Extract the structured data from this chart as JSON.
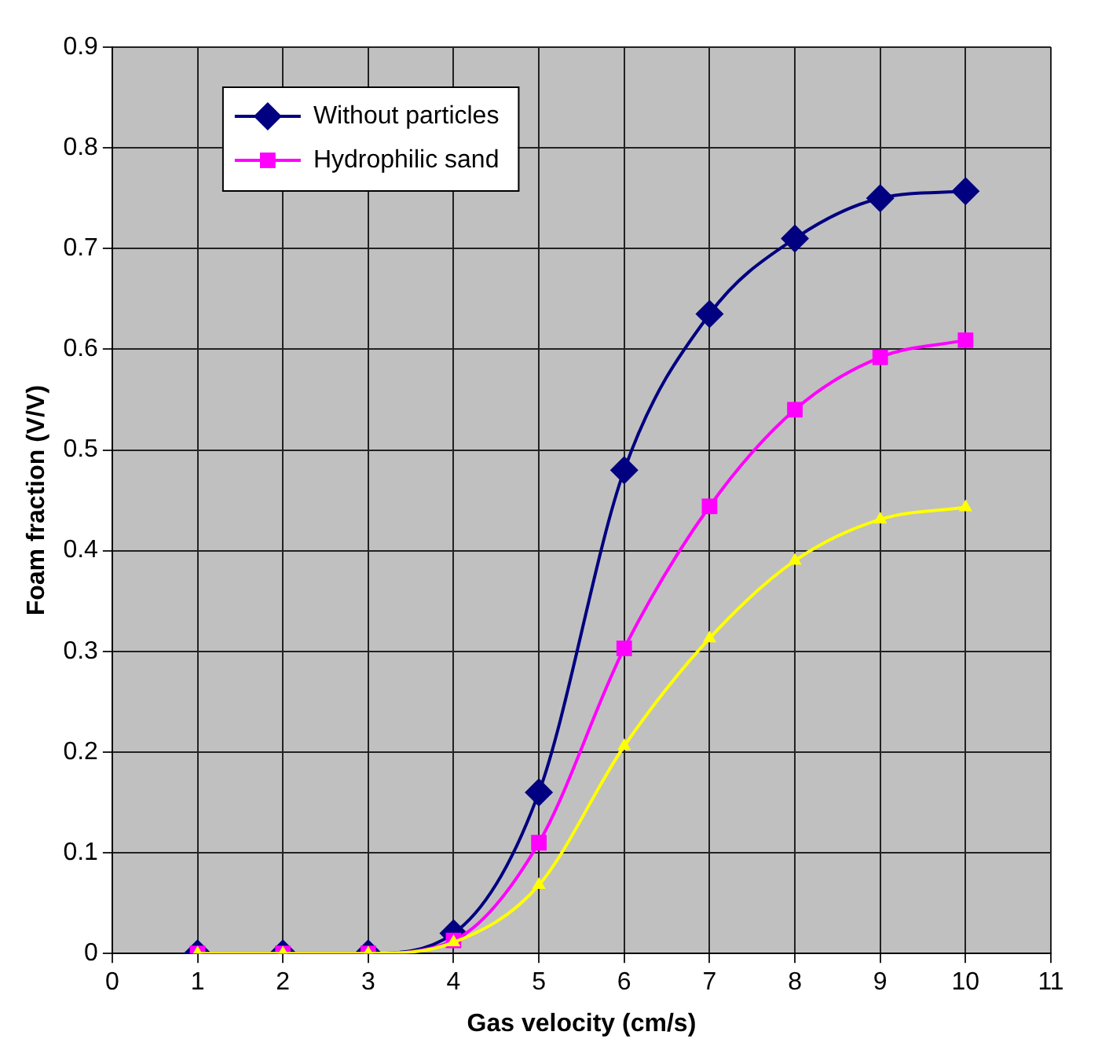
{
  "chart_data": {
    "type": "line",
    "xlabel": "Gas velocity (cm/s)",
    "ylabel": "Foam fraction (V/V)",
    "x": [
      1,
      2,
      3,
      4,
      5,
      6,
      7,
      8,
      9,
      10
    ],
    "series": [
      {
        "name": "Without particles",
        "color": "#000080",
        "marker": "diamond",
        "values": [
          0,
          0,
          0,
          0.02,
          0.16,
          0.48,
          0.635,
          0.71,
          0.75,
          0.757
        ]
      },
      {
        "name": "Hydrophilic sand",
        "color": "#ff00ff",
        "marker": "square",
        "values": [
          0,
          0,
          0,
          0.013,
          0.11,
          0.303,
          0.444,
          0.54,
          0.592,
          0.609
        ]
      },
      {
        "color": "#ffff00",
        "marker": "triangle",
        "values": [
          0,
          0,
          0,
          0.011,
          0.068,
          0.206,
          0.313,
          0.39,
          0.431,
          0.443
        ]
      }
    ],
    "xlim": [
      0,
      11
    ],
    "xticks": [
      0,
      1,
      2,
      3,
      4,
      5,
      6,
      7,
      8,
      9,
      10,
      11
    ],
    "ylim": [
      0,
      0.9
    ],
    "yticks": [
      0,
      0.1,
      0.2,
      0.3,
      0.4,
      0.5,
      0.6,
      0.7,
      0.8,
      0.9
    ],
    "grid": true,
    "legend": "top left",
    "line_style": "solid"
  }
}
